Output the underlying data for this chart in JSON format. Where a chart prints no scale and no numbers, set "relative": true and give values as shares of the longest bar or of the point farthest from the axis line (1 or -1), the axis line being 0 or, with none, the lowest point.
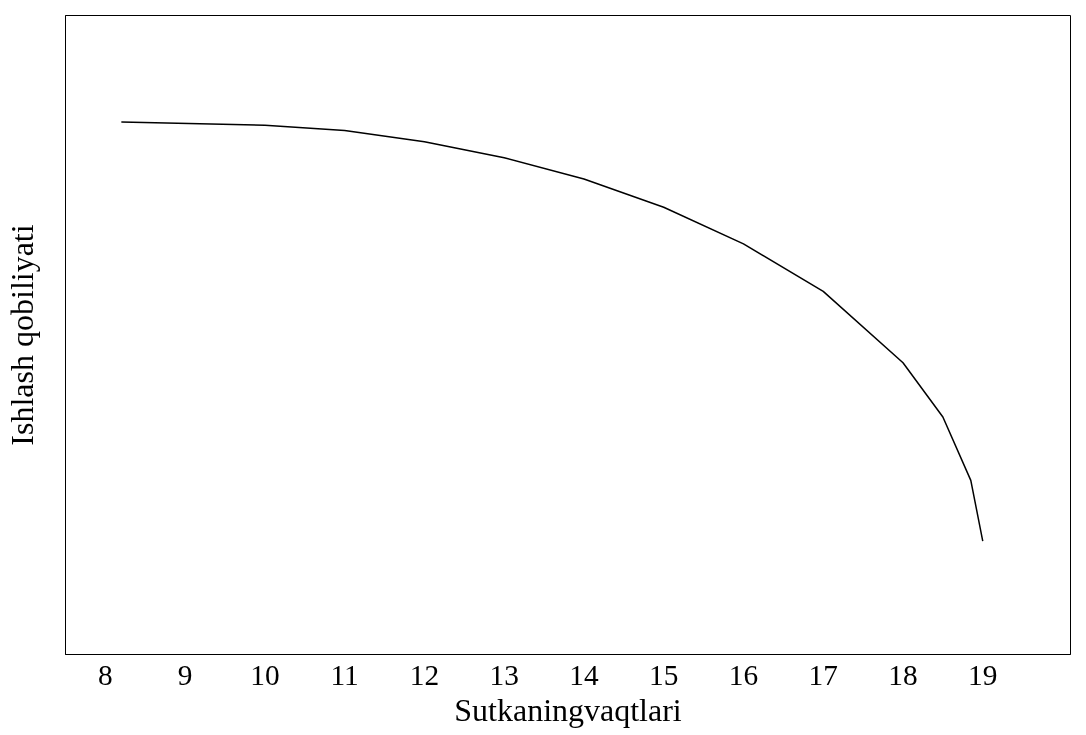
{
  "chart_data": {
    "type": "line",
    "relative": true,
    "xlabel": "Sutkaningvaqtlari",
    "ylabel": "Ishlash qobiliyati",
    "color": "#000000",
    "x": [
      8.2,
      10,
      11,
      12,
      13,
      14,
      15,
      16,
      17,
      18,
      18.5,
      18.85,
      19
    ],
    "values": [
      1,
      0.994,
      0.984,
      0.963,
      0.933,
      0.893,
      0.84,
      0.771,
      0.682,
      0.548,
      0.446,
      0.327,
      0.213
    ],
    "xlim": [
      7.5,
      20.1
    ],
    "xticks": [
      8,
      9,
      10,
      11,
      12,
      13,
      14,
      15,
      16,
      17,
      18,
      19
    ],
    "grid": false
  }
}
